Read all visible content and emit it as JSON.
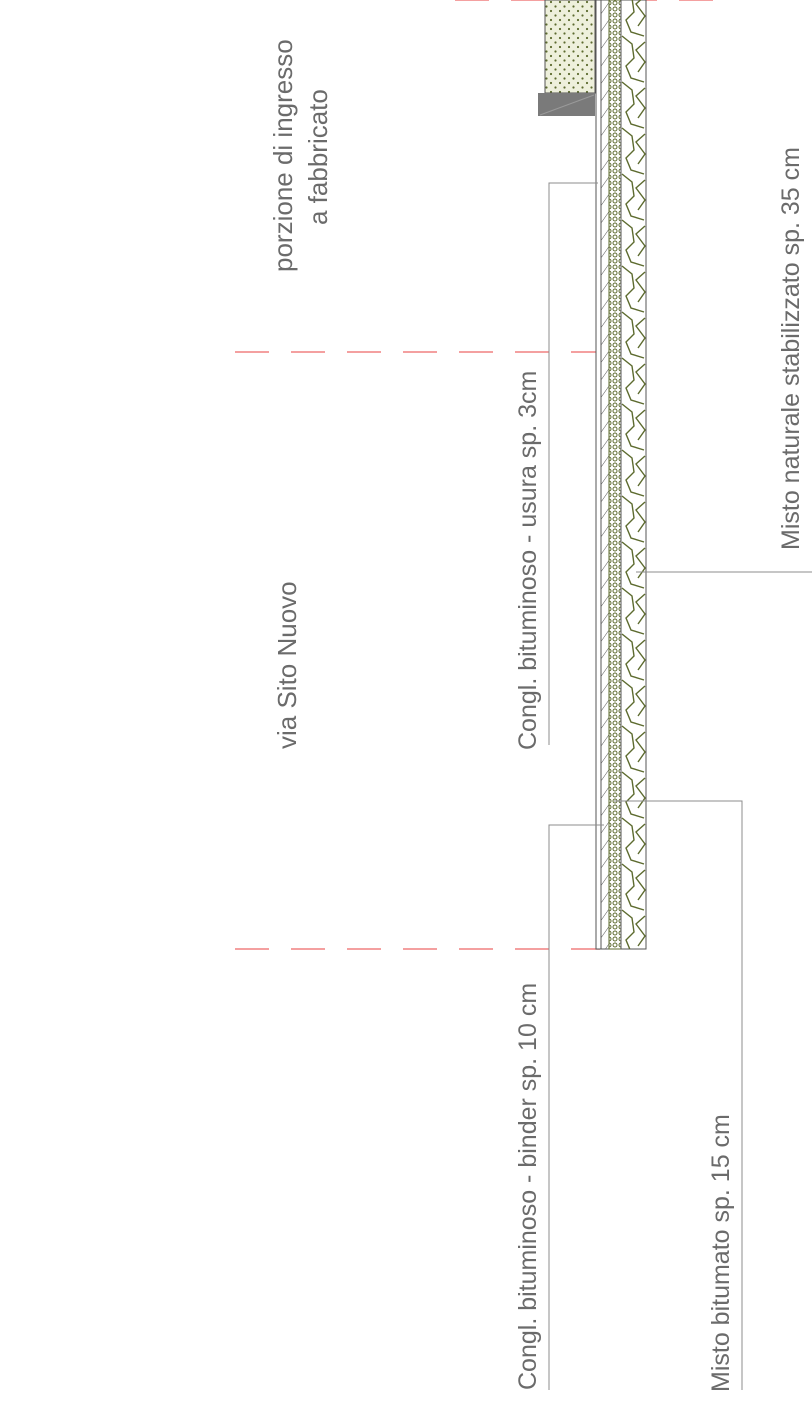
{
  "labels": {
    "zone_entrance_line1": "porzione di ingresso",
    "zone_entrance_line2": "a fabbricato",
    "zone_street": "via Sito Nuovo",
    "layer_wear": "Congl. bituminoso - usura sp. 3cm",
    "layer_binder": "Congl. bituminoso - binder sp. 10 cm",
    "layer_base": "Misto bitumato sp. 15 cm",
    "layer_subbase": "Misto naturale stabilizzato sp. 35 cm"
  },
  "colors": {
    "text": "#6b6b6b",
    "boundary_dash": "#f08080",
    "leader": "#8c8c8c",
    "hatch": "#555555",
    "aggregate": "#5d6b2f",
    "soil_fill": "#eef0dc",
    "curb": "#7a7a7a"
  }
}
